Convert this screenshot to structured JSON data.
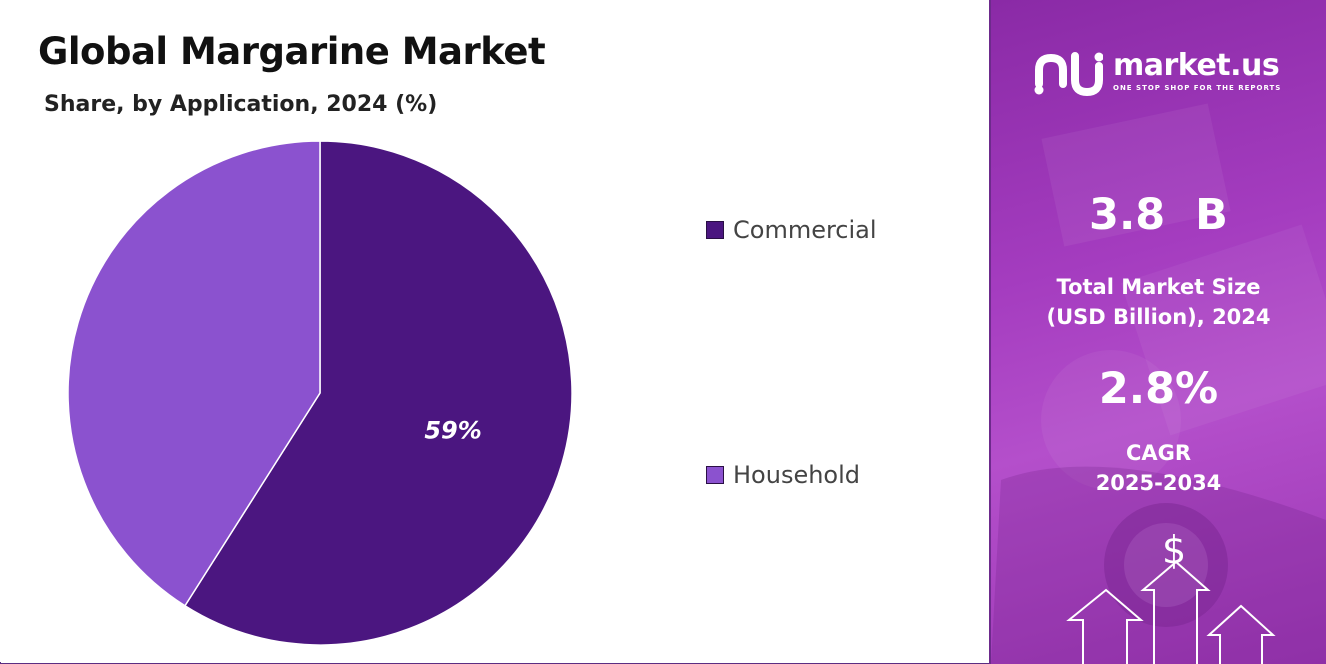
{
  "chart_data": {
    "type": "pie",
    "title": "Global Margarine Market",
    "subtitle": "Share, by Application, 2024 (%)",
    "categories": [
      "Commercial",
      "Household"
    ],
    "values": [
      59,
      41
    ],
    "data_labels": [
      "59%",
      ""
    ],
    "colors": [
      "#4b1680",
      "#8b52cf"
    ],
    "legend_position": "right"
  },
  "sidebar": {
    "brand_name": "market.us",
    "brand_tagline": "ONE STOP SHOP FOR THE REPORTS",
    "market_size_value": "3.8  B",
    "market_size_label_line1": "Total Market Size",
    "market_size_label_line2": "(USD Billion), 2024",
    "cagr_value": "2.8%",
    "cagr_label_line1": "CAGR",
    "cagr_label_line2": "2025-2034",
    "currency_symbol": "$"
  }
}
